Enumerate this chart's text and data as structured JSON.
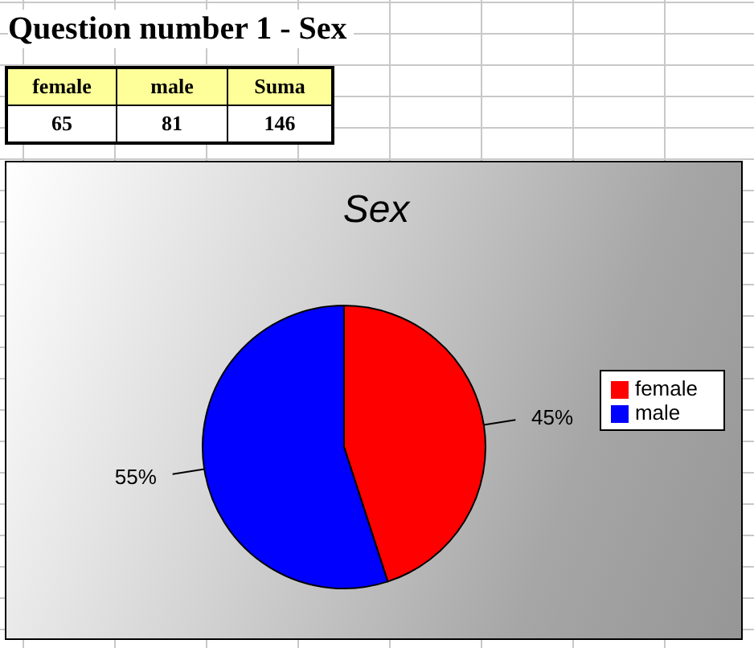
{
  "chart_data": [
    {
      "type": "other",
      "title": "Question number 1 - Sex",
      "categories": [
        "female",
        "male",
        "Suma"
      ],
      "values": [
        65,
        81,
        146
      ],
      "data_labels": true
    },
    {
      "type": "pie",
      "title": "Sex",
      "categories": [
        "female",
        "male"
      ],
      "values": [
        45,
        55
      ],
      "colors": [
        "#ff0000",
        "#0000ff"
      ],
      "value_labels": [
        "45%",
        "55%"
      ],
      "legend": "right"
    }
  ]
}
